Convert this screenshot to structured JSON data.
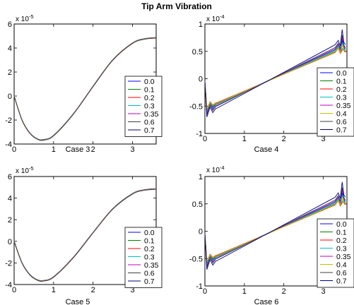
{
  "figure": {
    "title": "Tip Arm Vibration"
  },
  "legend_labels": [
    "0.0",
    "0.1",
    "0.2",
    "0.3",
    "0.35",
    "0.4",
    "0.6",
    "0.7"
  ],
  "series_colors": [
    "#0000ff",
    "#008000",
    "#ff0000",
    "#00bfbf",
    "#bf00bf",
    "#bfbf00",
    "#404040",
    "#000080"
  ],
  "chart_data": [
    {
      "id": "case3",
      "type": "line",
      "xlabel": "Case 3",
      "ylabel": "",
      "exponent_label": {
        "base": "x 10",
        "power": "-5"
      },
      "xlim": [
        0,
        3.6
      ],
      "ylim": [
        -4,
        6
      ],
      "xticks": [
        0,
        1,
        2,
        3
      ],
      "xtick_labels": [
        "0",
        "1",
        "2",
        "3"
      ],
      "yticks": [
        -4,
        -2,
        0,
        2,
        4,
        6
      ],
      "ytick_labels": [
        "-4",
        "-2",
        "0",
        "2",
        "4",
        "6"
      ],
      "legend": [
        "0.0",
        "0.1",
        "0.2",
        "0.3",
        "0.35",
        "0.6",
        "0.7"
      ],
      "series_kind": "smooth",
      "x": [
        0,
        0.2,
        0.4,
        0.6,
        0.75,
        1.0,
        1.5,
        2.0,
        2.5,
        3.0,
        3.3,
        3.6
      ],
      "y": [
        0,
        -2.0,
        -3.1,
        -3.6,
        -3.65,
        -3.3,
        -1.5,
        0.8,
        3.0,
        4.4,
        4.75,
        4.85
      ]
    },
    {
      "id": "case4",
      "type": "line",
      "xlabel": "Case 4",
      "ylabel": "",
      "exponent_label": {
        "base": "x 10",
        "power": "-4"
      },
      "xlim": [
        0,
        3.6
      ],
      "ylim": [
        -1,
        1
      ],
      "xticks": [
        0,
        1,
        2,
        3
      ],
      "xtick_labels": [
        "0",
        "1",
        "2",
        "3"
      ],
      "yticks": [
        -1,
        -0.5,
        0,
        0.5,
        1
      ],
      "ytick_labels": [
        "-1",
        "-0.5",
        "0",
        "0.5",
        "1"
      ],
      "legend": [
        "0.0",
        "0.1",
        "0.2",
        "0.3",
        "0.35",
        "0.4",
        "0.6",
        "0.7"
      ],
      "series_kind": "oscillating",
      "series": [
        {
          "name": "0.0",
          "start": -0.47,
          "end": 0.53,
          "dip": -0.6,
          "peak": 0.7
        },
        {
          "name": "0.1",
          "start": -0.46,
          "end": 0.5,
          "dip": -0.58,
          "peak": 0.55
        },
        {
          "name": "0.2",
          "start": -0.44,
          "end": 0.48,
          "dip": -0.56,
          "peak": 0.52
        },
        {
          "name": "0.3",
          "start": -0.47,
          "end": 0.52,
          "dip": -0.62,
          "peak": 0.65
        },
        {
          "name": "0.35",
          "start": -0.49,
          "end": 0.55,
          "dip": -0.64,
          "peak": 0.75
        },
        {
          "name": "0.4",
          "start": -0.45,
          "end": 0.49,
          "dip": -0.57,
          "peak": 0.6
        },
        {
          "name": "0.6",
          "start": -0.5,
          "end": 0.57,
          "dip": -0.66,
          "peak": 0.8
        },
        {
          "name": "0.7",
          "start": -0.54,
          "end": 0.62,
          "dip": -0.7,
          "peak": 0.9
        }
      ]
    },
    {
      "id": "case5",
      "type": "line",
      "xlabel": "Case 5",
      "ylabel": "",
      "exponent_label": {
        "base": "x 10",
        "power": "-5"
      },
      "xlim": [
        0,
        3.6
      ],
      "ylim": [
        -4,
        6
      ],
      "xticks": [
        0,
        1,
        2,
        3
      ],
      "xtick_labels": [
        "0",
        "1",
        "2",
        "3"
      ],
      "yticks": [
        -4,
        -2,
        0,
        2,
        4,
        6
      ],
      "ytick_labels": [
        "-4",
        "-2",
        "0",
        "2",
        "4",
        "6"
      ],
      "legend": [
        "0.0",
        "0.1",
        "0.2",
        "0.3",
        "0.35",
        "0.6",
        "0.7"
      ],
      "series_kind": "smooth",
      "x": [
        0,
        0.2,
        0.4,
        0.6,
        0.75,
        1.0,
        1.5,
        2.0,
        2.5,
        3.0,
        3.3,
        3.6
      ],
      "y": [
        0,
        -2.0,
        -3.1,
        -3.6,
        -3.65,
        -3.3,
        -1.5,
        0.8,
        3.0,
        4.4,
        4.75,
        4.85
      ]
    },
    {
      "id": "case6",
      "type": "line",
      "xlabel": "Case 6",
      "ylabel": "",
      "exponent_label": {
        "base": "x 10",
        "power": "-4"
      },
      "xlim": [
        0,
        3.6
      ],
      "ylim": [
        -1,
        1
      ],
      "xticks": [
        0,
        1,
        2,
        3
      ],
      "xtick_labels": [
        "0",
        "1",
        "2",
        "3"
      ],
      "yticks": [
        -1,
        -0.5,
        0,
        0.5,
        1
      ],
      "ytick_labels": [
        "-1",
        "-0.5",
        "0",
        "0.5",
        "1"
      ],
      "legend": [
        "0.0",
        "0.1",
        "0.2",
        "0.3",
        "0.35",
        "0.4",
        "0.6",
        "0.7"
      ],
      "series_kind": "oscillating",
      "series": [
        {
          "name": "0.0",
          "start": -0.47,
          "end": 0.53,
          "dip": -0.6,
          "peak": 0.7
        },
        {
          "name": "0.1",
          "start": -0.46,
          "end": 0.5,
          "dip": -0.58,
          "peak": 0.55
        },
        {
          "name": "0.2",
          "start": -0.44,
          "end": 0.48,
          "dip": -0.56,
          "peak": 0.52
        },
        {
          "name": "0.3",
          "start": -0.47,
          "end": 0.52,
          "dip": -0.62,
          "peak": 0.65
        },
        {
          "name": "0.35",
          "start": -0.49,
          "end": 0.55,
          "dip": -0.64,
          "peak": 0.75
        },
        {
          "name": "0.4",
          "start": -0.45,
          "end": 0.49,
          "dip": -0.57,
          "peak": 0.6
        },
        {
          "name": "0.6",
          "start": -0.5,
          "end": 0.57,
          "dip": -0.66,
          "peak": 0.8
        },
        {
          "name": "0.7",
          "start": -0.54,
          "end": 0.62,
          "dip": -0.7,
          "peak": 0.9
        }
      ]
    }
  ]
}
